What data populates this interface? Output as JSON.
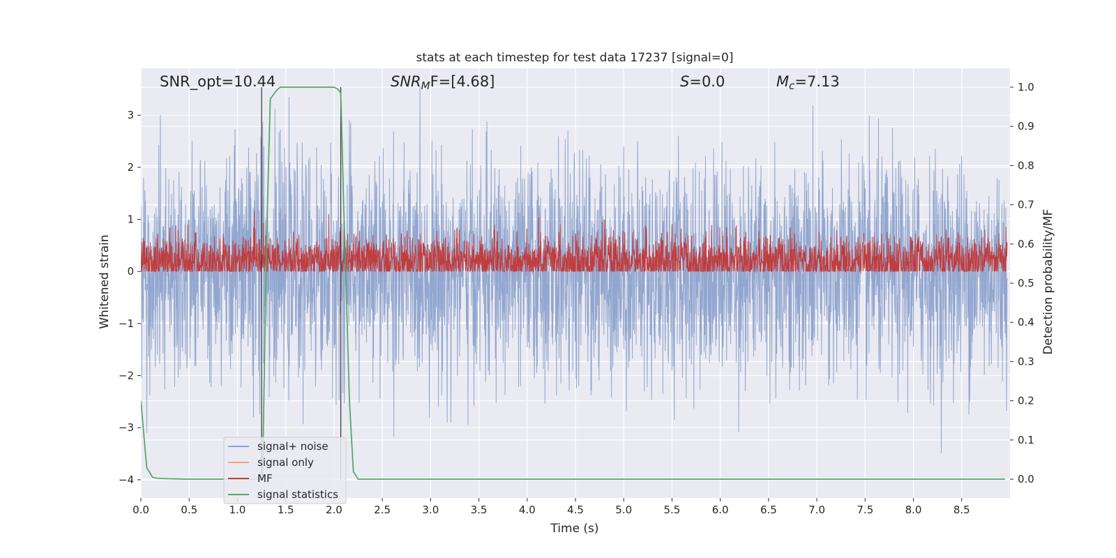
{
  "chart_data": {
    "type": "line",
    "title": "stats at each timestep for test data 17237 [signal=0]",
    "xlabel": "Time (s)",
    "ylabel": "Whitened strain",
    "ylabel_right": "Detection probability/MF",
    "xlim": [
      0.0,
      9.0
    ],
    "ylim": [
      -4.35,
      3.9
    ],
    "ylim_right": [
      -0.048,
      1.048
    ],
    "x_ticks": [
      "0.0",
      "0.5",
      "1.0",
      "1.5",
      "2.0",
      "2.5",
      "3.0",
      "3.5",
      "4.0",
      "4.5",
      "5.0",
      "5.5",
      "6.0",
      "6.5",
      "7.0",
      "7.5",
      "8.0",
      "8.5"
    ],
    "y_ticks": [
      "3",
      "2",
      "1",
      "0",
      "−1",
      "−2",
      "−3",
      "−4"
    ],
    "y_ticks_right": [
      "1.0",
      "0.9",
      "0.8",
      "0.7",
      "0.6",
      "0.5",
      "0.4",
      "0.3",
      "0.2",
      "0.1",
      "0.0"
    ],
    "grid": true,
    "legend_position": "lower-left",
    "annotations": {
      "snr_opt": "SNR_opt=10.44",
      "snr_mf": "SNR",
      "snr_mf_sub": "M",
      "snr_mf_tail": "F=[4.68]",
      "s": "S",
      "s_tail": "=0.0",
      "mc": "M",
      "mc_sub": "c",
      "mc_tail": "=7.13"
    },
    "vlines_x": [
      1.25,
      2.07
    ],
    "series": [
      {
        "name": "signal+ noise",
        "color": "#8da2cc",
        "axis": "left",
        "noise_sigma": 1.0,
        "range": [
          -4.0,
          3.55
        ]
      },
      {
        "name": "signal only",
        "color": "#f0a582",
        "axis": "left",
        "values": []
      },
      {
        "name": "MF",
        "color": "#c03d3e",
        "axis": "right",
        "baseline": 0.555,
        "amplitude": 0.045,
        "range": [
          0.53,
          0.7
        ]
      },
      {
        "name": "signal statistics",
        "color": "#55a868",
        "axis": "right",
        "x": [
          0.0,
          0.06,
          0.12,
          0.18,
          0.3,
          0.5,
          1.2,
          1.26,
          1.3,
          1.34,
          1.4,
          1.44,
          1.5,
          1.8,
          1.95,
          2.0,
          2.04,
          2.07,
          2.1,
          2.16,
          2.2,
          2.25,
          8.95
        ],
        "y": [
          0.2,
          0.03,
          0.005,
          0.002,
          0.001,
          0.0,
          0.0,
          0.0,
          0.6,
          0.97,
          0.99,
          1.0,
          1.0,
          1.0,
          1.0,
          1.0,
          0.995,
          0.985,
          0.7,
          0.2,
          0.02,
          0.0,
          0.0
        ]
      }
    ]
  }
}
